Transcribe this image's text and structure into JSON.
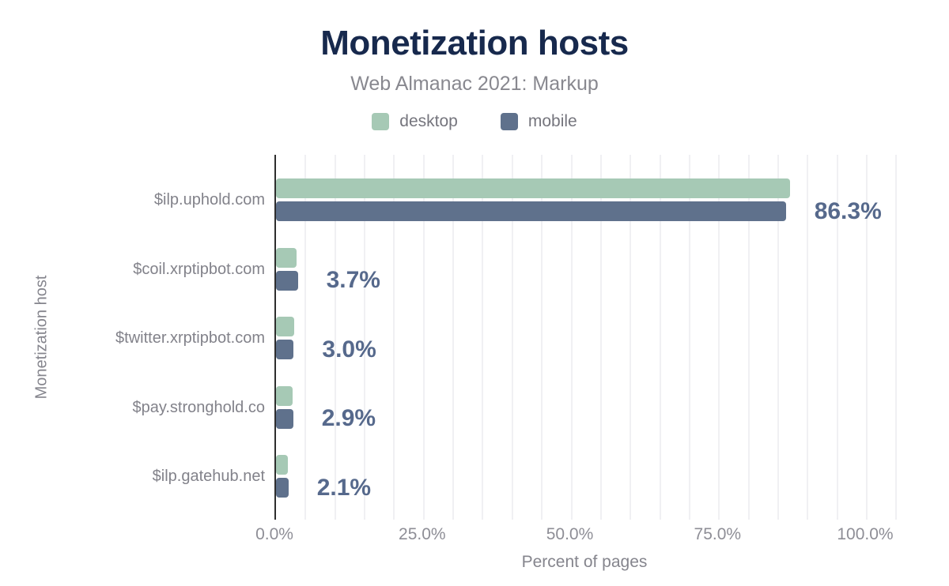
{
  "colors": {
    "background": "#ffffff",
    "title_text": "#17294d",
    "subtitle_text": "#88888f",
    "legend_text": "#75757d",
    "category_text": "#82828a",
    "tick_text": "#8e8e96",
    "axis_title_text": "#85858d",
    "value_label_text": "#56698c",
    "axis_line": "#2e2e2e",
    "gridline": "#f0f0f3",
    "desktop_bar": "#a6c9b5",
    "mobile_bar": "#5f718c"
  },
  "chart_data": {
    "type": "bar",
    "orientation": "horizontal",
    "title": "Monetization hosts",
    "subtitle": "Web Almanac 2021: Markup",
    "xlabel": "Percent of pages",
    "ylabel": "Monetization host",
    "legend_position": "top",
    "grid": true,
    "grid_step_pct": 5,
    "xlim": [
      0,
      105
    ],
    "x_ticks": [
      "0.0%",
      "25.0%",
      "50.0%",
      "75.0%",
      "100.0%"
    ],
    "x_tick_values": [
      0,
      25,
      50,
      75,
      100
    ],
    "categories": [
      "$ilp.uphold.com",
      "$coil.xrptipbot.com",
      "$twitter.xrptipbot.com",
      "$pay.stronghold.co",
      "$ilp.gatehub.net"
    ],
    "series": [
      {
        "name": "desktop",
        "color": "#a6c9b5",
        "values": [
          87.0,
          3.5,
          3.1,
          2.8,
          2.0
        ]
      },
      {
        "name": "mobile",
        "color": "#5f718c",
        "values": [
          86.3,
          3.7,
          3.0,
          2.9,
          2.1
        ]
      }
    ],
    "value_labels": [
      "86.3%",
      "3.7%",
      "3.0%",
      "2.9%",
      "2.1%"
    ],
    "value_label_series": "mobile"
  }
}
